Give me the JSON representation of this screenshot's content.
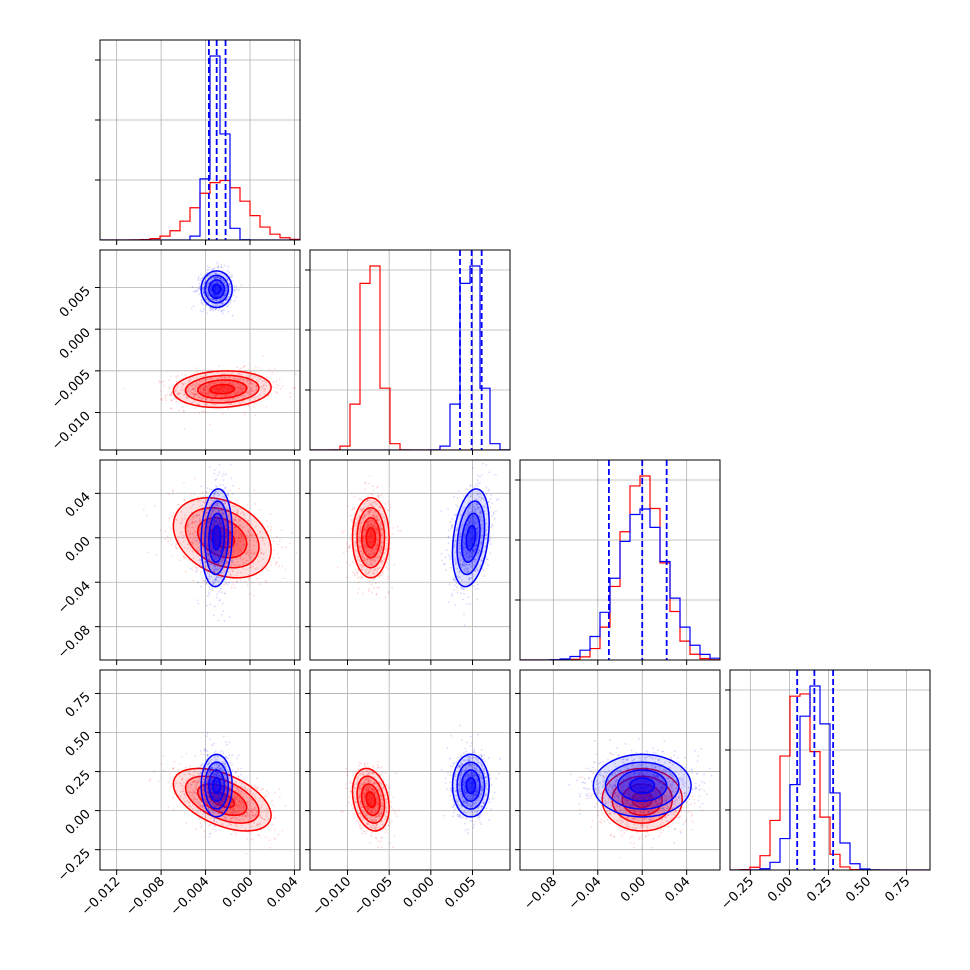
{
  "colors": {
    "red": "#ff0000",
    "blue": "#0000ff",
    "grid": "#b0b0b0",
    "axes": "#000000"
  },
  "chart_data": {
    "type": "corner",
    "params": [
      {
        "range": [
          -0.0135,
          0.0045
        ],
        "ticks": [
          -0.012,
          -0.008,
          -0.004,
          0.0,
          0.004
        ],
        "tick_labels": [
          "−0.012",
          "−0.008",
          "−0.004",
          "0.000",
          "0.004"
        ]
      },
      {
        "range": [
          -0.0145,
          0.0095
        ],
        "ticks": [
          -0.01,
          -0.005,
          0.0,
          0.005
        ],
        "tick_labels": [
          "−0.010",
          "−0.005",
          "0.000",
          "0.005"
        ]
      },
      {
        "range": [
          -0.11,
          0.07
        ],
        "ticks": [
          -0.08,
          -0.04,
          0.0,
          0.04
        ],
        "tick_labels": [
          "−0.08",
          "−0.04",
          "0.00",
          "0.04"
        ]
      },
      {
        "range": [
          -0.38,
          0.9
        ],
        "ticks": [
          -0.25,
          0.0,
          0.25,
          0.5,
          0.75
        ],
        "tick_labels": [
          "−0.25",
          "0.00",
          "0.25",
          "0.50",
          "0.75"
        ]
      }
    ],
    "series": [
      {
        "color": "red",
        "mean": [
          -0.0025,
          -0.0072,
          0.0,
          0.07
        ],
        "std": [
          0.0022,
          0.0011,
          0.018,
          0.1
        ],
        "corr": [
          [
            1,
            0.1,
            -0.3,
            -0.5
          ],
          [
            0.1,
            1,
            0.0,
            -0.25
          ],
          [
            -0.3,
            0.0,
            1,
            0.0
          ],
          [
            -0.5,
            -0.25,
            0.0,
            1
          ]
        ]
      },
      {
        "color": "blue",
        "mean": [
          -0.003,
          0.0048,
          0.0,
          0.16
        ],
        "std": [
          0.0007,
          0.0011,
          0.022,
          0.1
        ],
        "corr": [
          [
            1,
            0.0,
            0.1,
            0.0
          ],
          [
            0.0,
            1,
            0.3,
            0.0
          ],
          [
            0.1,
            0.3,
            1,
            0.0
          ],
          [
            0.0,
            0.0,
            0.0,
            1
          ]
        ]
      }
    ],
    "quantile_lines": [
      {
        "series": "blue",
        "values": [
          -0.0037,
          -0.003,
          -0.0022
        ]
      },
      {
        "series": "blue",
        "values": [
          0.0035,
          0.0049,
          0.0061
        ]
      },
      {
        "series": "blue",
        "values": [
          -0.03,
          0.0,
          0.022
        ]
      },
      {
        "series": "blue",
        "values": [
          0.05,
          0.16,
          0.28
        ]
      }
    ]
  }
}
